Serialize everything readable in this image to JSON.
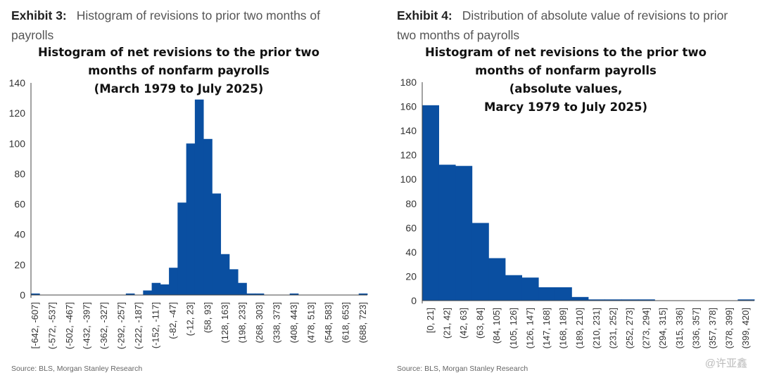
{
  "left": {
    "exhibit_label": "Exhibit 3:",
    "exhibit_caption": "Histogram of revisions to prior two months of payrolls",
    "source": "Source: BLS, Morgan Stanley Research"
  },
  "right": {
    "exhibit_label": "Exhibit 4:",
    "exhibit_caption": "Distribution of absolute value of revisions to prior two months of payrolls",
    "source": "Source: BLS, Morgan Stanley Research"
  },
  "watermark": "@许亚鑫",
  "colors": {
    "bar": "#0a4fa1"
  },
  "chart_data": [
    {
      "type": "bar",
      "title": [
        "Histogram of net revisions to the prior two",
        "months of nonfarm payrolls",
        "(March 1979 to July 2025)"
      ],
      "bin_edges": [
        -642,
        -607,
        -572,
        -537,
        -502,
        -467,
        -432,
        -397,
        -362,
        -327,
        -292,
        -257,
        -222,
        -187,
        -152,
        -117,
        -82,
        -47,
        -12,
        23,
        58,
        93,
        128,
        163,
        198,
        233,
        268,
        303,
        338,
        373,
        408,
        443,
        478,
        513,
        548,
        583,
        618,
        653,
        688,
        723
      ],
      "x_labels": [
        "[-642, -607]",
        "(-572, -537]",
        "(-502, -467]",
        "(-432, -397]",
        "(-362, -327]",
        "(-292, -257]",
        "(-222, -187]",
        "(-152, -117]",
        "(-82, -47]",
        "(-12, 23]",
        "(58, 93]",
        "(128, 163]",
        "(198, 233]",
        "(268, 303]",
        "(338, 373]",
        "(408, 443]",
        "(478, 513]",
        "(548, 583]",
        "(618, 653]",
        "(688, 723]"
      ],
      "values": [
        1,
        0,
        0,
        0,
        0,
        0,
        0,
        0,
        0,
        0,
        0,
        1,
        0,
        3,
        8,
        7,
        18,
        61,
        100,
        129,
        103,
        67,
        27,
        17,
        8,
        1,
        1,
        0,
        0,
        0,
        1,
        0,
        0,
        0,
        0,
        0,
        0,
        0,
        1
      ],
      "ylim": [
        0,
        140
      ],
      "yticks": [
        0,
        20,
        40,
        60,
        80,
        100,
        120,
        140
      ]
    },
    {
      "type": "bar",
      "title": [
        "Histogram of net revisions to the prior two",
        "months of nonfarm payrolls",
        "(absolute values,",
        "Marcy 1979 to July 2025)"
      ],
      "bin_edges": [
        0,
        21,
        42,
        63,
        84,
        105,
        126,
        147,
        168,
        189,
        210,
        231,
        252,
        273,
        294,
        315,
        336,
        357,
        378,
        399,
        420
      ],
      "x_labels": [
        "[0, 21]",
        "(21, 42]",
        "(42, 63]",
        "(63, 84]",
        "(84, 105]",
        "(105, 126]",
        "(126, 147]",
        "(147, 168]",
        "(168, 189]",
        "(189, 210]",
        "(210, 231]",
        "(231, 252]",
        "(252, 273]",
        "(273, 294]",
        "(294, 315]",
        "(315, 336]",
        "(336, 357]",
        "(357, 378]",
        "(378, 399]",
        "(399, 420]"
      ],
      "values": [
        161,
        112,
        111,
        64,
        35,
        21,
        19,
        11,
        11,
        3,
        1,
        1,
        1,
        1,
        0,
        0,
        0,
        0,
        0,
        1
      ],
      "ylim": [
        0,
        180
      ],
      "yticks": [
        0,
        20,
        40,
        60,
        80,
        100,
        120,
        140,
        160,
        180
      ]
    }
  ]
}
